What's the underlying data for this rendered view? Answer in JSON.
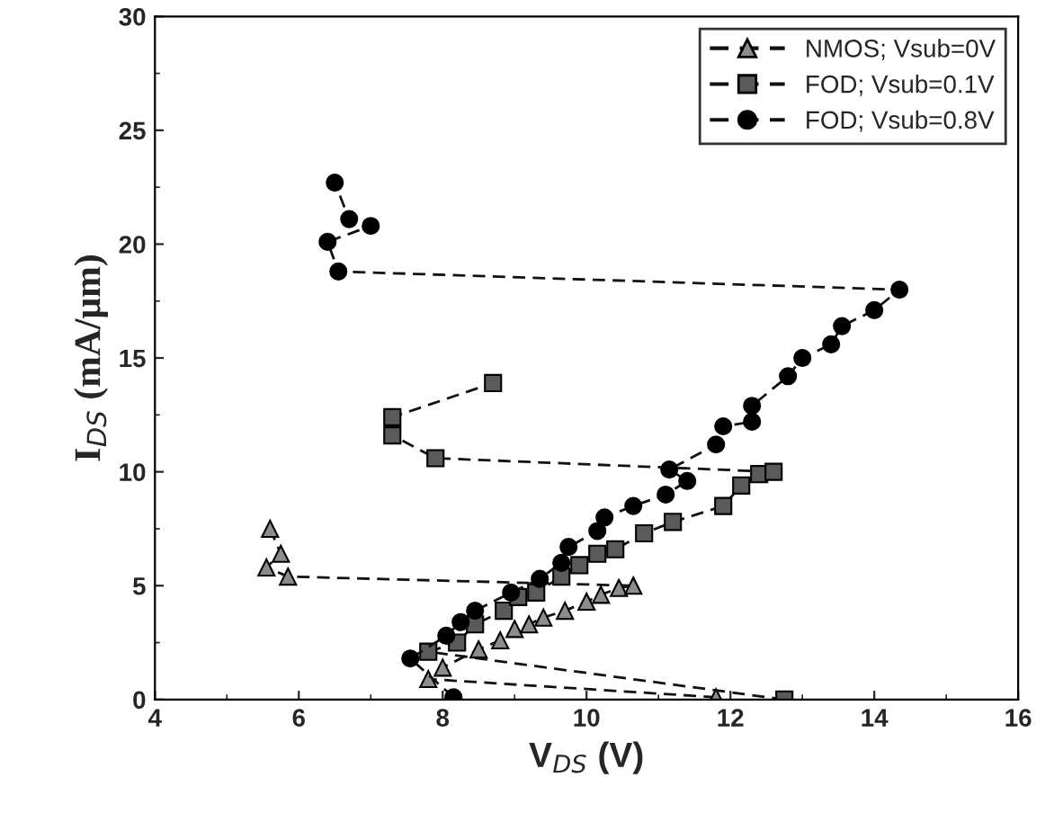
{
  "chart_data": {
    "type": "line",
    "xlabel": "V$_{DS}$ (V)",
    "ylabel": "I$_{DS}$ (mA/μm)",
    "xlim": [
      4,
      16
    ],
    "xticks": [
      4,
      6,
      8,
      10,
      12,
      14,
      16
    ],
    "ylim": [
      0,
      30
    ],
    "yticks": [
      0,
      5,
      10,
      15,
      20,
      25,
      30
    ],
    "legend": "top right",
    "grid": false,
    "line_style": "dashed",
    "series": [
      {
        "name": "NMOS; Vsub=0V",
        "color": "#8c8c8c",
        "marker": "triangle",
        "x": [
          11.8,
          7.8,
          8.0,
          8.5,
          8.8,
          9.0,
          9.2,
          9.4,
          9.7,
          10.0,
          10.2,
          10.45,
          10.65,
          5.85,
          5.55,
          5.75,
          5.6
        ],
        "values": [
          0.1,
          0.9,
          1.4,
          2.2,
          2.6,
          3.1,
          3.3,
          3.6,
          3.9,
          4.3,
          4.6,
          4.9,
          5.0,
          5.4,
          5.8,
          6.4,
          7.5
        ]
      },
      {
        "name": "FOD; Vsub=0.1V",
        "color": "#5a5a5a",
        "marker": "square",
        "x": [
          12.75,
          7.8,
          8.2,
          8.45,
          8.85,
          9.05,
          9.3,
          9.65,
          9.9,
          10.15,
          10.4,
          10.8,
          11.2,
          11.9,
          12.15,
          12.4,
          12.6,
          7.9,
          7.3,
          7.3,
          8.7
        ],
        "values": [
          0.0,
          2.1,
          2.5,
          3.3,
          3.9,
          4.5,
          4.7,
          5.4,
          5.9,
          6.4,
          6.6,
          7.3,
          7.8,
          8.5,
          9.4,
          9.9,
          10.0,
          10.6,
          11.6,
          12.4,
          13.9
        ]
      },
      {
        "name": "FOD; Vsub=0.8V",
        "color": "#000000",
        "marker": "circle",
        "x": [
          8.15,
          7.55,
          8.05,
          8.25,
          8.45,
          8.95,
          9.35,
          9.65,
          9.75,
          10.15,
          10.25,
          10.65,
          11.1,
          11.4,
          11.15,
          11.8,
          11.9,
          12.3,
          12.3,
          12.8,
          13.0,
          13.4,
          13.55,
          14.0,
          14.35,
          6.55,
          6.4,
          7.0,
          6.7,
          6.5
        ],
        "values": [
          0.1,
          1.8,
          2.8,
          3.4,
          3.9,
          4.7,
          5.3,
          6.0,
          6.7,
          7.4,
          8.0,
          8.5,
          9.0,
          9.6,
          10.1,
          11.2,
          12.0,
          12.2,
          12.9,
          14.2,
          15.0,
          15.6,
          16.4,
          17.1,
          18.0,
          18.8,
          20.1,
          20.8,
          21.1,
          22.7
        ]
      }
    ]
  }
}
